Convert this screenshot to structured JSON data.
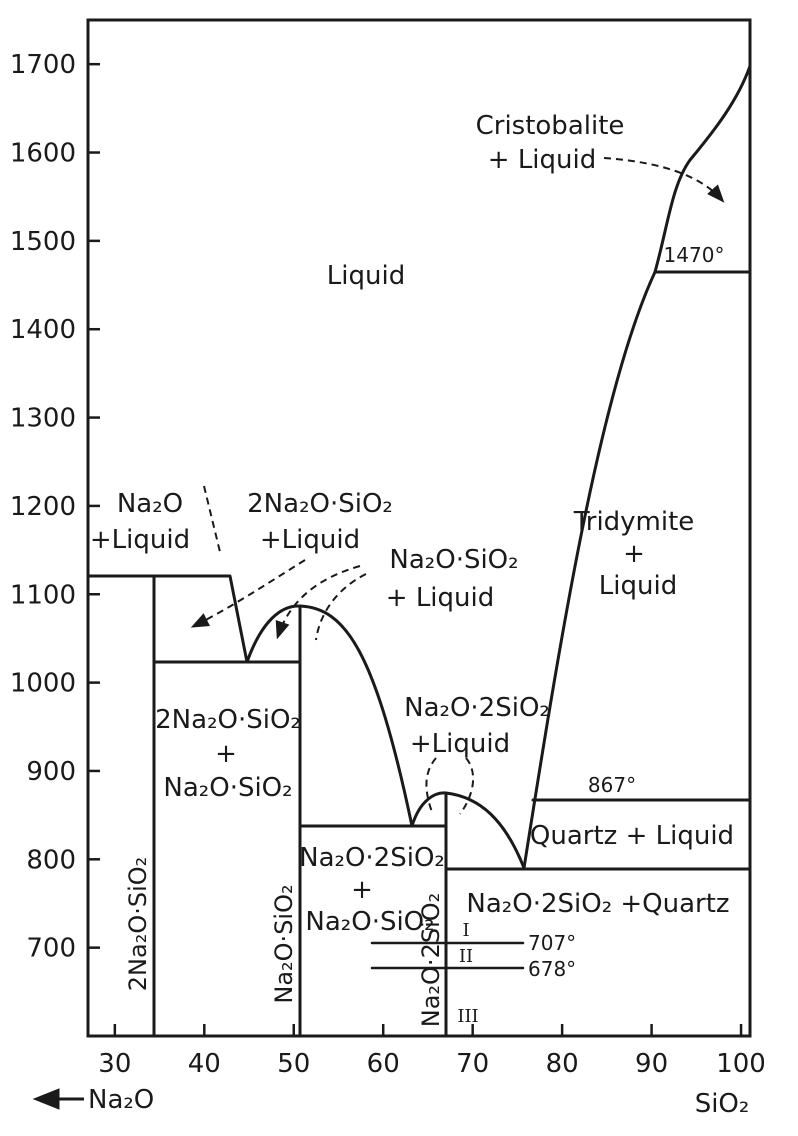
{
  "chart_data": {
    "type": "phase-diagram",
    "x_axis": {
      "range": [
        27,
        101
      ],
      "ticks": [
        30,
        40,
        50,
        60,
        70,
        80,
        90,
        100
      ],
      "tick_labels": [
        "30",
        "40",
        "50",
        "60",
        "70",
        "80",
        "90",
        "100"
      ],
      "left_label": "Na₂O",
      "right_label": "SiO₂"
    },
    "y_axis": {
      "range": [
        600,
        1750
      ],
      "ticks": [
        700,
        800,
        900,
        1000,
        1100,
        1200,
        1300,
        1400,
        1500,
        1600,
        1700
      ],
      "tick_labels": [
        "700",
        "800",
        "900",
        "1000",
        "1100",
        "1200",
        "1300",
        "1400",
        "1500",
        "1600",
        "1700"
      ]
    },
    "invariant_temperatures": [
      {
        "label": "1470°",
        "value": 1470
      },
      {
        "label": "867°",
        "value": 867
      },
      {
        "label": "707°",
        "value": 707
      },
      {
        "label": "678°",
        "value": 678
      }
    ],
    "region_labels": {
      "liquid": "Liquid",
      "cristobalite_line1": "Cristobalite",
      "cristobalite_line2": "+ Liquid",
      "tridymite_line1": "Tridymite",
      "tridymite_plus": "+",
      "tridymite_line3": "Liquid",
      "na2o_liquid_line1": "Na₂O",
      "na2o_liquid_line2": "+Liquid",
      "c2_liquid_line1": "2Na₂O·SiO₂",
      "c2_liquid_line2": "+Liquid",
      "c1_liquid_line1": "Na₂O·SiO₂",
      "c1_liquid_line2": "+ Liquid",
      "c3_liquid_line1": "Na₂O·2SiO₂",
      "c3_liquid_line2": "+Liquid",
      "quartz_liquid": "Quartz + Liquid",
      "c3_quartz": "Na₂O·2SiO₂ +Quartz",
      "c2_c1_line1": "2Na₂O·SiO₂",
      "c2_c1_plus": "+",
      "c2_c1_line3": "Na₂O·SiO₂",
      "c3_c1_line1": "Na₂O·2SiO₂",
      "c3_c1_plus": "+",
      "c3_c1_line3": "Na₂O·SiO₂",
      "c2_vertical": "2Na₂O·SiO₂",
      "c1_vertical": "Na₂O·SiO₂",
      "c3_vertical": "Na₂O·2SiO₂",
      "phase_I": "I",
      "phase_II": "II",
      "phase_III": "III"
    }
  }
}
